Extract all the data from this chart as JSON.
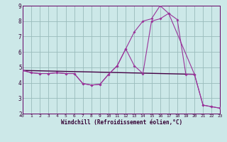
{
  "background_color": "#cce8e8",
  "grid_color": "#99bbbb",
  "line_color": "#993399",
  "xlabel": "Windchill (Refroidissement éolien,°C)",
  "xlim": [
    0,
    23
  ],
  "ylim": [
    2,
    9
  ],
  "yticks": [
    2,
    3,
    4,
    5,
    6,
    7,
    8,
    9
  ],
  "xticks": [
    0,
    1,
    2,
    3,
    4,
    5,
    6,
    7,
    8,
    9,
    10,
    11,
    12,
    13,
    14,
    15,
    16,
    17,
    18,
    19,
    20,
    21,
    22,
    23
  ],
  "series1_x": [
    0,
    1,
    2,
    3,
    4,
    5,
    6,
    7,
    8,
    9,
    10,
    11,
    12,
    13,
    14,
    15,
    16,
    17,
    20,
    21,
    22,
    23
  ],
  "series1_y": [
    4.8,
    4.65,
    4.6,
    4.6,
    4.65,
    4.6,
    4.6,
    3.95,
    3.85,
    3.9,
    4.55,
    5.1,
    6.2,
    7.3,
    8.0,
    8.15,
    9.0,
    8.5,
    4.55,
    2.55,
    2.45,
    2.35
  ],
  "series2_x": [
    0,
    1,
    2,
    3,
    4,
    5,
    6,
    7,
    8,
    9,
    10,
    11,
    12,
    13,
    14,
    15,
    16,
    17,
    18,
    19,
    20,
    21,
    22,
    23
  ],
  "series2_y": [
    4.8,
    4.65,
    4.6,
    4.6,
    4.65,
    4.6,
    4.6,
    3.95,
    3.85,
    3.9,
    4.55,
    5.1,
    6.2,
    5.1,
    4.6,
    8.0,
    8.15,
    8.5,
    8.1,
    4.55,
    4.55,
    2.55,
    2.45,
    2.35
  ],
  "series3_x": [
    0,
    20
  ],
  "series3_y": [
    4.8,
    4.55
  ]
}
